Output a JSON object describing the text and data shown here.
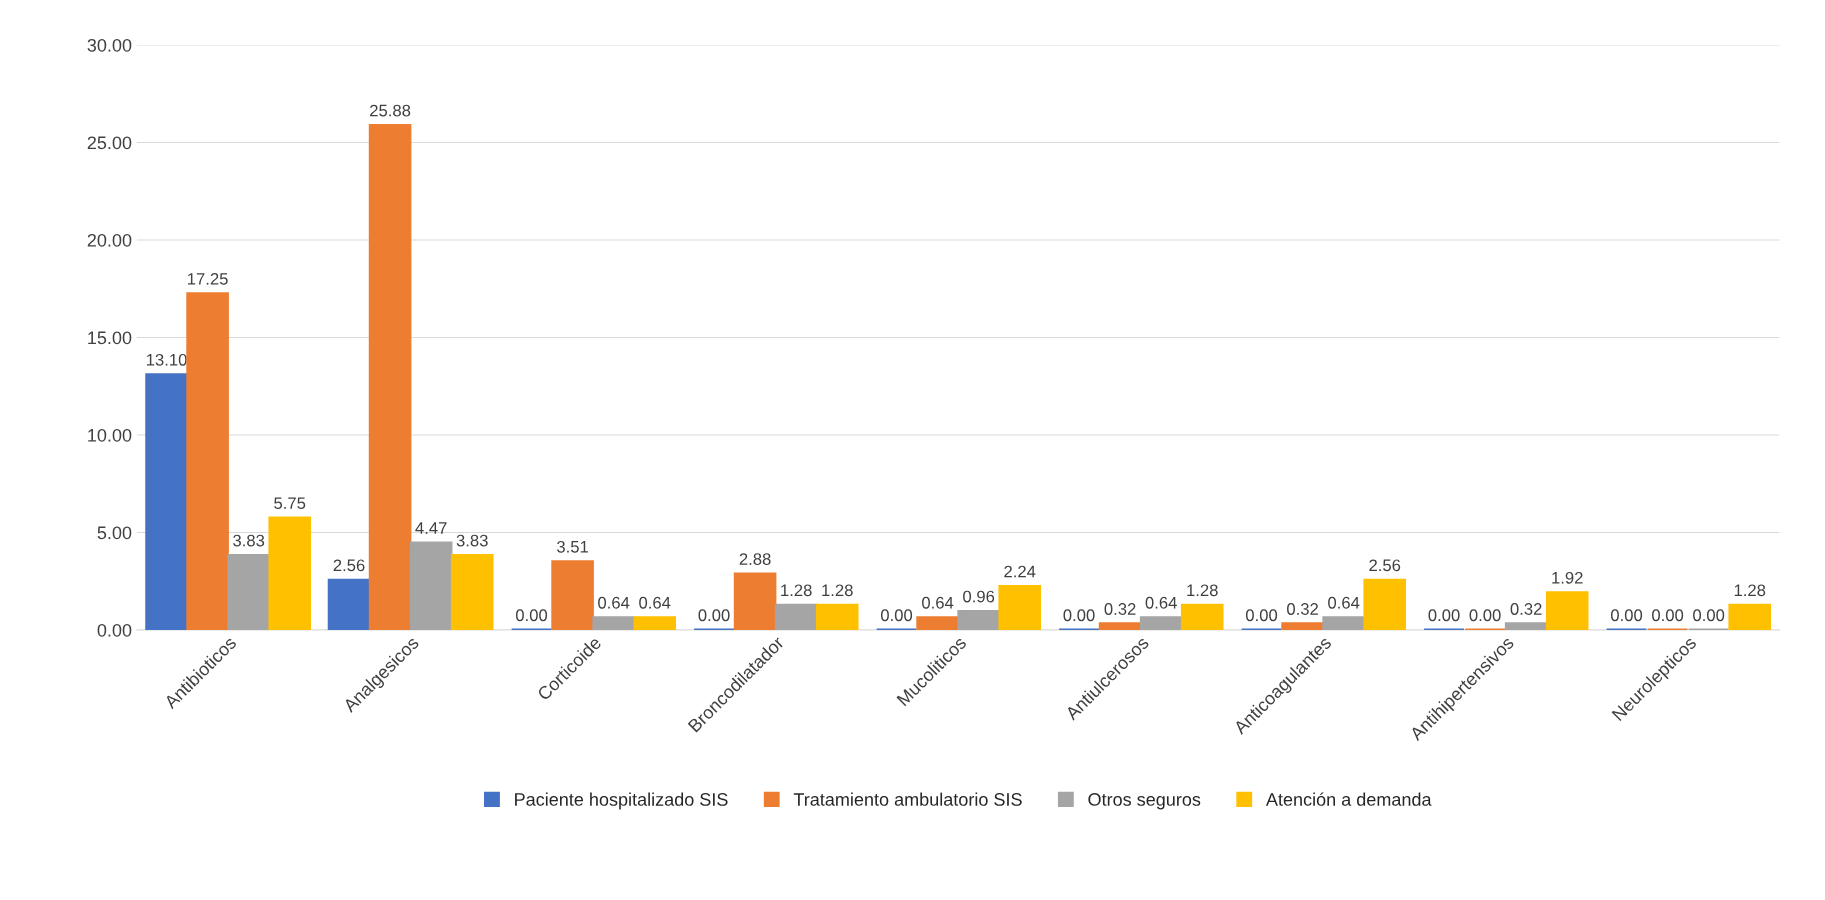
{
  "chart_data": {
    "type": "bar",
    "categories": [
      "Antibioticos",
      "Analgesicos",
      "Corticoide",
      "Broncodilatador",
      "Mucoliticos",
      "Antiulcerosos",
      "Anticoagulantes",
      "Antihipertensivos",
      "Neurolepticos"
    ],
    "series": [
      {
        "name": "Paciente hospitalizado SIS",
        "color": "#4472c4",
        "values": [
          13.1,
          2.56,
          0.0,
          0.0,
          0.0,
          0.0,
          0.0,
          0.0,
          0.0
        ],
        "value_labels": [
          "13.10",
          "2.56",
          "0.00",
          "0.00",
          "0.00",
          "0.00",
          "0.00",
          "0.00",
          "0.00"
        ]
      },
      {
        "name": "Tratamiento ambulatorio SIS",
        "color": "#ed7d31",
        "values": [
          17.25,
          25.88,
          3.51,
          2.88,
          0.64,
          0.32,
          0.32,
          0.0,
          0.0
        ],
        "value_labels": [
          "17.25",
          "25.88",
          "3.51",
          "2.88",
          "0.64",
          "0.32",
          "0.32",
          "0.00",
          "0.00"
        ]
      },
      {
        "name": "Otros seguros",
        "color": "#a5a5a5",
        "values": [
          3.83,
          4.47,
          0.64,
          1.28,
          0.96,
          0.64,
          0.64,
          0.32,
          0.0
        ],
        "value_labels": [
          "3.83",
          "4.47",
          "0.64",
          "1.28",
          "0.96",
          "0.64",
          "0.64",
          "0.32",
          "0.00"
        ]
      },
      {
        "name": "Atención a demanda",
        "color": "#ffc000",
        "values": [
          5.75,
          3.83,
          0.64,
          1.28,
          2.24,
          1.28,
          2.56,
          1.92,
          1.28
        ],
        "value_labels": [
          "5.75",
          "3.83",
          "0.64",
          "1.28",
          "2.24",
          "1.28",
          "2.56",
          "1.92",
          "1.28"
        ]
      }
    ],
    "ylim": [
      0,
      30
    ],
    "yticks": [
      {
        "value": 0,
        "label": "0.00"
      },
      {
        "value": 5,
        "label": "5.00"
      },
      {
        "value": 10,
        "label": "10.00"
      },
      {
        "value": 15,
        "label": "15.00"
      },
      {
        "value": 20,
        "label": "20.00"
      },
      {
        "value": 25,
        "label": "25.00"
      },
      {
        "value": 30,
        "label": "30.00"
      }
    ],
    "grid": "y",
    "legend": "bottom"
  }
}
